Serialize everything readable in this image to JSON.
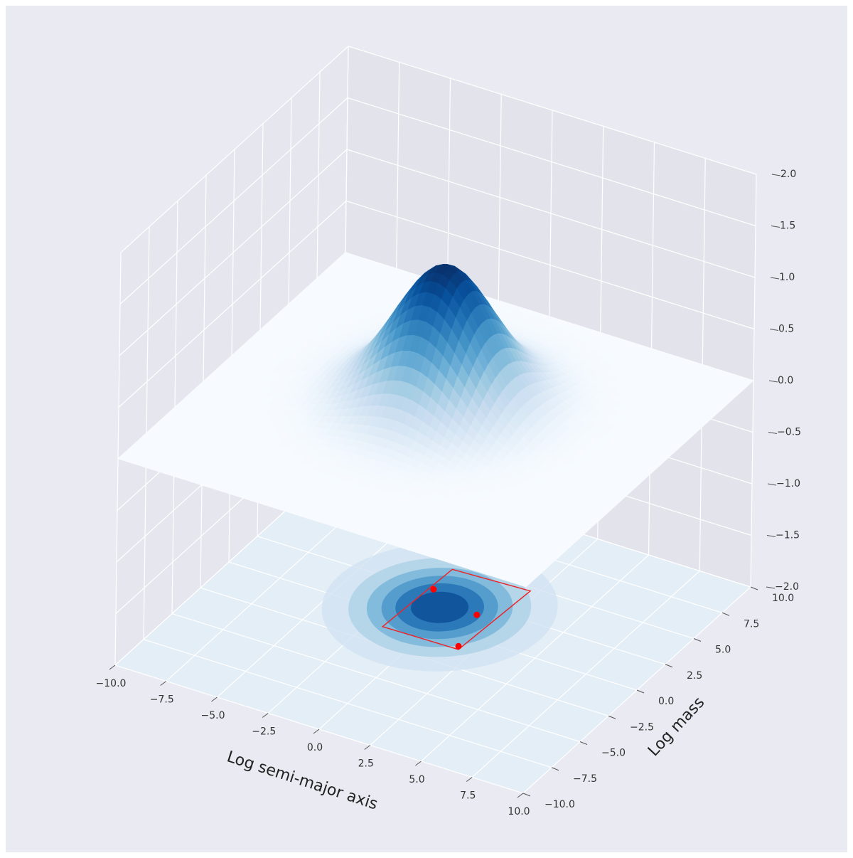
{
  "chart_data": {
    "type": "surface3d",
    "xlabel": "Log semi-major axis",
    "ylabel": "Log mass",
    "xlim": [
      -10,
      10
    ],
    "ylim": [
      -10,
      10
    ],
    "zlim": [
      -2,
      2
    ],
    "xticks": [
      {
        "value": -10,
        "label": "−10.0"
      },
      {
        "value": -7.5,
        "label": "−7.5"
      },
      {
        "value": -5,
        "label": "−5.0"
      },
      {
        "value": -2.5,
        "label": "−2.5"
      },
      {
        "value": 0,
        "label": "0.0"
      },
      2.5,
      {
        "value": 5,
        "label": "5.0"
      },
      7.5,
      {
        "value": 10,
        "label": "10.0"
      }
    ],
    "yticks": [
      {
        "value": -10,
        "label": "−10.0"
      },
      {
        "value": -7.5,
        "label": "−7.5"
      },
      {
        "value": -5,
        "label": "−5.0"
      },
      {
        "value": -2.5,
        "label": "−2.5"
      },
      {
        "value": 0,
        "label": "0.0"
      },
      2.5,
      {
        "value": 5,
        "label": "5.0"
      },
      7.5,
      {
        "value": 10,
        "label": "10.0"
      }
    ],
    "zticks": [
      {
        "value": -2,
        "label": "−2.0"
      },
      {
        "value": -1.5,
        "label": "−1.5"
      },
      {
        "value": -1,
        "label": "−1.0"
      },
      {
        "value": -0.5,
        "label": "−0.5"
      },
      {
        "value": 0,
        "label": "0.0"
      },
      0.5,
      {
        "value": 1,
        "label": "1.0"
      },
      1.5,
      {
        "value": 2,
        "label": "2.0"
      }
    ],
    "grid": true,
    "surface": {
      "peak": 1.3,
      "center": [
        -0.5,
        1.5
      ],
      "sigma": [
        2.2,
        2.4
      ]
    },
    "points": {
      "color": "#ff0000",
      "x": [
        -1.45,
        1.15,
        1.74
      ],
      "y": [
        2.66,
        1.8,
        -0.87
      ]
    },
    "region": {
      "color": "#e8262b",
      "x": [
        -1.57,
        2.14,
        1.87,
        -1.81
      ],
      "y": [
        4.52,
        4.73,
        -1.11,
        -1.18
      ]
    }
  }
}
